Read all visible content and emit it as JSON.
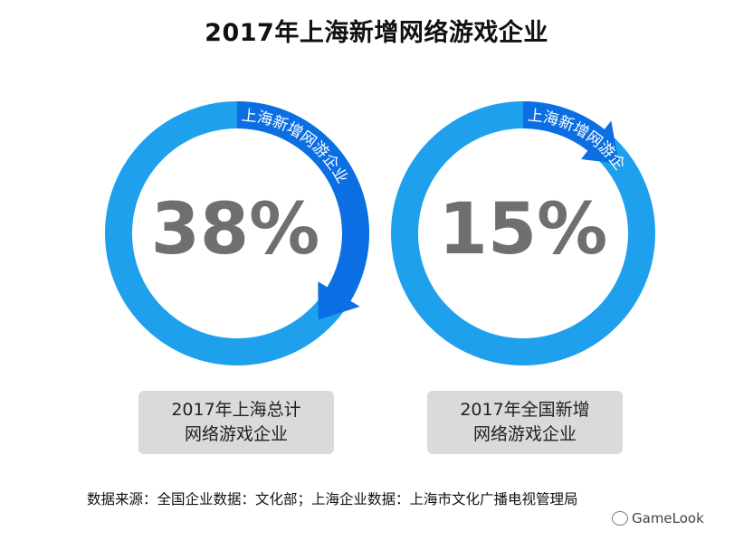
{
  "title": "2017年上海新增网络游戏企业",
  "colors": {
    "ring": "#1ea0ec",
    "arrow": "#0b6fe3",
    "number": "#6f6f6f",
    "caption_bg": "#dadada"
  },
  "chart_data": [
    {
      "type": "pie",
      "title": "",
      "values": [
        38,
        62
      ],
      "categories": [
        "上海新增网游企业",
        ""
      ],
      "value_label": "38%",
      "arc_label": "上海新增网游企业",
      "caption": [
        "2017年上海总计",
        "网络游戏企业"
      ]
    },
    {
      "type": "pie",
      "title": "",
      "values": [
        15,
        85
      ],
      "categories": [
        "上海新增网游企业",
        ""
      ],
      "value_label": "15%",
      "arc_label": "上海新增网游企业",
      "caption": [
        "2017年全国新增",
        "网络游戏企业"
      ]
    }
  ],
  "source": "数据来源：全国企业数据：文化部；上海企业数据：上海市文化广播电视管理局",
  "watermark": "GameLook"
}
